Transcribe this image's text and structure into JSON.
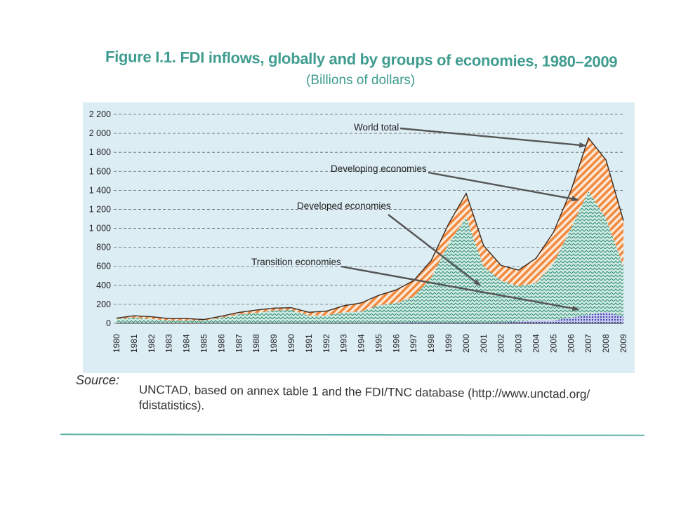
{
  "figure": {
    "title": "Figure I.1. FDI inflows, globally and by groups of economies, 1980–2009",
    "subtitle": "(Billions of dollars)"
  },
  "chart_data": {
    "type": "area",
    "stacked": true,
    "x": [
      "1980",
      "1981",
      "1982",
      "1983",
      "1984",
      "1985",
      "1986",
      "1987",
      "1988",
      "1989",
      "1990",
      "1991",
      "1992",
      "1993",
      "1994",
      "1995",
      "1996",
      "1997",
      "1998",
      "1999",
      "2000",
      "2001",
      "2002",
      "2003",
      "2004",
      "2005",
      "2006",
      "2007",
      "2008",
      "2009"
    ],
    "ylim": [
      0,
      2200
    ],
    "yticks": [
      0,
      200,
      400,
      600,
      800,
      1000,
      1200,
      1400,
      1600,
      1800,
      2000,
      2200
    ],
    "ytick_labels": [
      "0",
      "200",
      "400",
      "600",
      "800",
      "1 000",
      "1 200",
      "1 400",
      "1 600",
      "1 800",
      "2 000",
      "2 200"
    ],
    "grid": true,
    "series": [
      {
        "name": "Transition economies",
        "color": "#3a3aa8",
        "values": [
          0,
          0,
          0,
          0,
          0,
          0,
          0,
          0,
          0,
          0,
          0,
          2,
          3,
          5,
          5,
          5,
          7,
          10,
          10,
          8,
          7,
          8,
          10,
          20,
          30,
          30,
          60,
          90,
          120,
          70
        ]
      },
      {
        "name": "Developed economies",
        "color": "#2e8b78",
        "values": [
          45,
          60,
          45,
          30,
          30,
          30,
          60,
          95,
          110,
          135,
          140,
          80,
          80,
          110,
          120,
          185,
          205,
          270,
          470,
          830,
          1110,
          590,
          440,
          370,
          395,
          600,
          940,
          1300,
          980,
          530
        ]
      },
      {
        "name": "Developing economies",
        "color": "#f08a40",
        "values": [
          10,
          20,
          25,
          20,
          20,
          10,
          15,
          20,
          30,
          25,
          25,
          35,
          45,
          70,
          90,
          105,
          140,
          170,
          180,
          210,
          250,
          220,
          160,
          170,
          260,
          330,
          400,
          560,
          620,
          480
        ]
      }
    ],
    "world_total": {
      "name": "World total",
      "values": [
        55,
        80,
        70,
        50,
        50,
        40,
        75,
        115,
        140,
        160,
        165,
        117,
        128,
        185,
        215,
        295,
        352,
        450,
        660,
        1048,
        1367,
        818,
        610,
        560,
        685,
        960,
        1400,
        1950,
        1720,
        1080
      ]
    },
    "annotations": [
      "World total",
      "Developing economies",
      "Developed economies",
      "Transition economies"
    ]
  },
  "source": {
    "label": "Source:",
    "text": "UNCTAD, based on annex table 1 and the FDI/TNC database (http://www.unctad.org/ fdistatistics)."
  }
}
